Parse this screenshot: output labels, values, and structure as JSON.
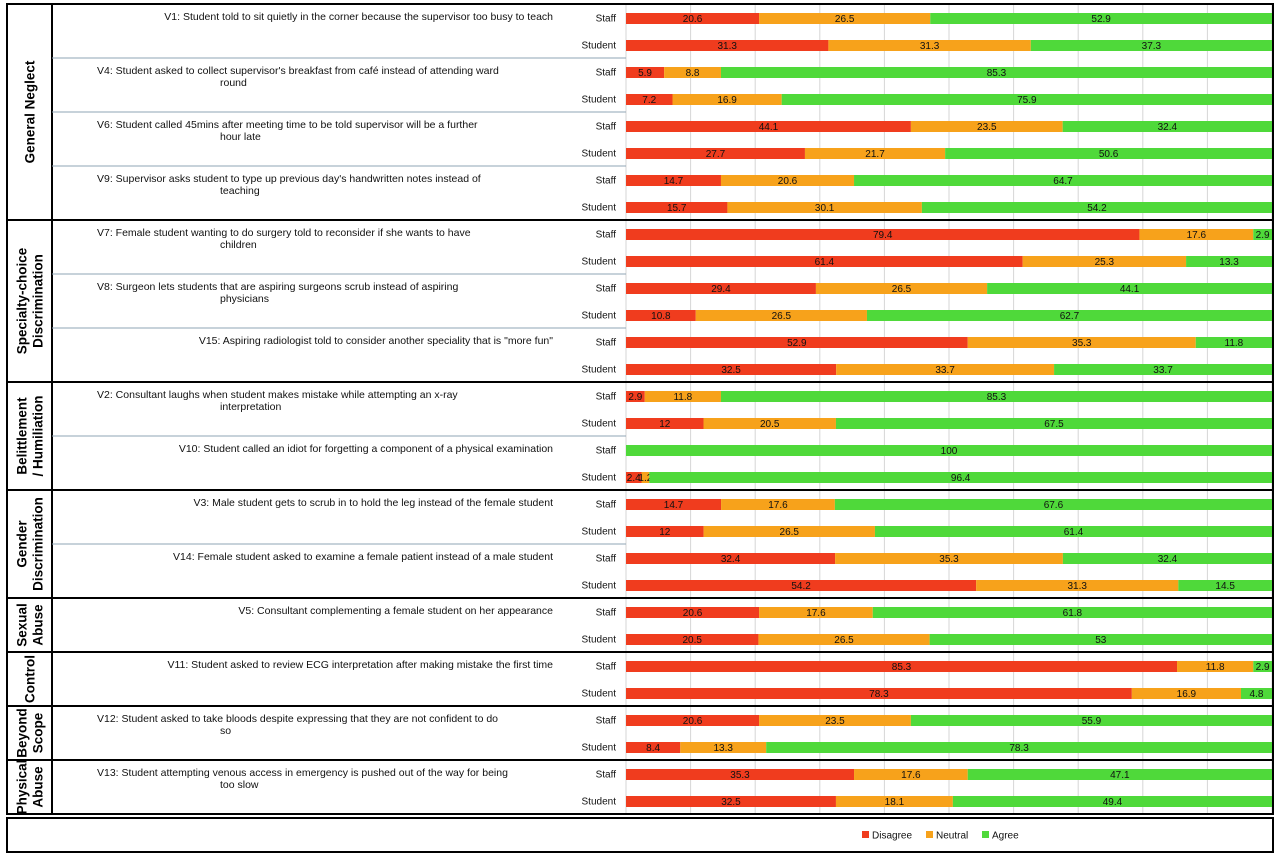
{
  "chart_data": {
    "type": "bar",
    "orientation": "horizontal",
    "stacked": true,
    "xlim": [
      0,
      100
    ],
    "grid": true,
    "legend_position": "bottom-center",
    "series": [
      {
        "name": "Disagree",
        "color": "#f03c1e"
      },
      {
        "name": "Neutral",
        "color": "#f7a21b"
      },
      {
        "name": "Agree",
        "color": "#4fd93a"
      }
    ],
    "categories": [
      {
        "label": "General Neglect",
        "items": [
          {
            "label": "V1: Student told to sit quietly in the corner because the supervisor too busy to teach",
            "groups": [
              {
                "name": "Staff",
                "labels": [
                  "20.6",
                  "26.5",
                  "52.9"
                ]
              },
              {
                "name": "Student",
                "labels": [
                  "31.3",
                  "31.3",
                  "37.3"
                ]
              }
            ]
          },
          {
            "label": "V4: Student asked to collect supervisor's breakfast from café instead of attending ward round",
            "groups": [
              {
                "name": "Staff",
                "labels": [
                  "5.9",
                  "8.8",
                  "85.3"
                ]
              },
              {
                "name": "Student",
                "labels": [
                  "7.2",
                  "16.9",
                  "75.9"
                ]
              }
            ]
          },
          {
            "label": "V6: Student called 45mins after meeting time to be told supervisor will be a further hour late",
            "groups": [
              {
                "name": "Staff",
                "labels": [
                  "44.1",
                  "23.5",
                  "32.4"
                ]
              },
              {
                "name": "Student",
                "labels": [
                  "27.7",
                  "21.7",
                  "50.6"
                ]
              }
            ]
          },
          {
            "label": "V9: Supervisor asks student to type up previous day's handwritten notes instead of teaching",
            "groups": [
              {
                "name": "Staff",
                "labels": [
                  "14.7",
                  "20.6",
                  "64.7"
                ]
              },
              {
                "name": "Student",
                "labels": [
                  "15.7",
                  "30.1",
                  "54.2"
                ]
              }
            ]
          }
        ]
      },
      {
        "label": "Specialty-choice Discrimination",
        "items": [
          {
            "label": "V7: Female student wanting to do surgery told to reconsider if she wants to have children",
            "groups": [
              {
                "name": "Staff",
                "labels": [
                  "79.4",
                  "17.6",
                  "2.9"
                ]
              },
              {
                "name": "Student",
                "labels": [
                  "61.4",
                  "25.3",
                  "13.3"
                ]
              }
            ]
          },
          {
            "label": "V8: Surgeon lets students that are aspiring surgeons scrub instead of aspiring physicians",
            "groups": [
              {
                "name": "Staff",
                "labels": [
                  "29.4",
                  "26.5",
                  "44.1"
                ]
              },
              {
                "name": "Student",
                "labels": [
                  "10.8",
                  "26.5",
                  "62.7"
                ]
              }
            ]
          },
          {
            "label": "V15: Aspiring radiologist told to consider another speciality that is \"more fun\"",
            "groups": [
              {
                "name": "Staff",
                "labels": [
                  "52.9",
                  "35.3",
                  "11.8"
                ]
              },
              {
                "name": "Student",
                "labels": [
                  "32.5",
                  "33.7",
                  "33.7"
                ]
              }
            ]
          }
        ]
      },
      {
        "label": "Belittlement / Humiliation",
        "items": [
          {
            "label": "V2: Consultant laughs when student makes mistake while attempting an x-ray interpretation",
            "groups": [
              {
                "name": "Staff",
                "labels": [
                  "2.9",
                  "11.8",
                  "85.3"
                ]
              },
              {
                "name": "Student",
                "labels": [
                  "12",
                  "20.5",
                  "67.5"
                ]
              }
            ]
          },
          {
            "label": "V10: Student called an idiot for forgetting a component of a physical examination",
            "groups": [
              {
                "name": "Staff",
                "labels": [
                  "0",
                  "",
                  "100"
                ]
              },
              {
                "name": "Student",
                "labels": [
                  "2.4",
                  "1.2",
                  "96.4"
                ]
              }
            ]
          }
        ]
      },
      {
        "label": "Gender Discrimination",
        "items": [
          {
            "label": "V3: Male student gets to scrub in to hold the leg instead of the female student",
            "groups": [
              {
                "name": "Staff",
                "labels": [
                  "14.7",
                  "17.6",
                  "67.6"
                ]
              },
              {
                "name": "Student",
                "labels": [
                  "12",
                  "26.5",
                  "61.4"
                ]
              }
            ]
          },
          {
            "label": "V14: Female student asked to examine a female patient instead of a male student",
            "groups": [
              {
                "name": "Staff",
                "labels": [
                  "32.4",
                  "35.3",
                  "32.4"
                ]
              },
              {
                "name": "Student",
                "labels": [
                  "54.2",
                  "31.3",
                  "14.5"
                ]
              }
            ]
          }
        ]
      },
      {
        "label": "Sexual Abuse",
        "items": [
          {
            "label": "V5: Consultant complementing a female student on her appearance",
            "groups": [
              {
                "name": "Staff",
                "labels": [
                  "20.6",
                  "17.6",
                  "61.8"
                ]
              },
              {
                "name": "Student",
                "labels": [
                  "20.5",
                  "26.5",
                  "53"
                ]
              }
            ]
          }
        ]
      },
      {
        "label": "Control",
        "items": [
          {
            "label": "V11: Student asked to review ECG interpretation after making mistake the first time",
            "groups": [
              {
                "name": "Staff",
                "labels": [
                  "85.3",
                  "11.8",
                  "2.9"
                ]
              },
              {
                "name": "Student",
                "labels": [
                  "78.3",
                  "16.9",
                  "4.8"
                ]
              }
            ]
          }
        ]
      },
      {
        "label": "Beyond Scope",
        "items": [
          {
            "label": "V12: Student asked to take bloods despite expressing that they are not confident to do so",
            "groups": [
              {
                "name": "Staff",
                "labels": [
                  "20.6",
                  "23.5",
                  "55.9"
                ]
              },
              {
                "name": "Student",
                "labels": [
                  "8.4",
                  "13.3",
                  "78.3"
                ]
              }
            ]
          }
        ]
      },
      {
        "label": "Physical Abuse",
        "items": [
          {
            "label": "V13: Student attempting venous access in emergency is pushed out of the way for being too slow",
            "groups": [
              {
                "name": "Staff",
                "labels": [
                  "35.3",
                  "17.6",
                  "47.1"
                ]
              },
              {
                "name": "Student",
                "labels": [
                  "32.5",
                  "18.1",
                  "49.4"
                ]
              }
            ]
          }
        ]
      }
    ]
  }
}
